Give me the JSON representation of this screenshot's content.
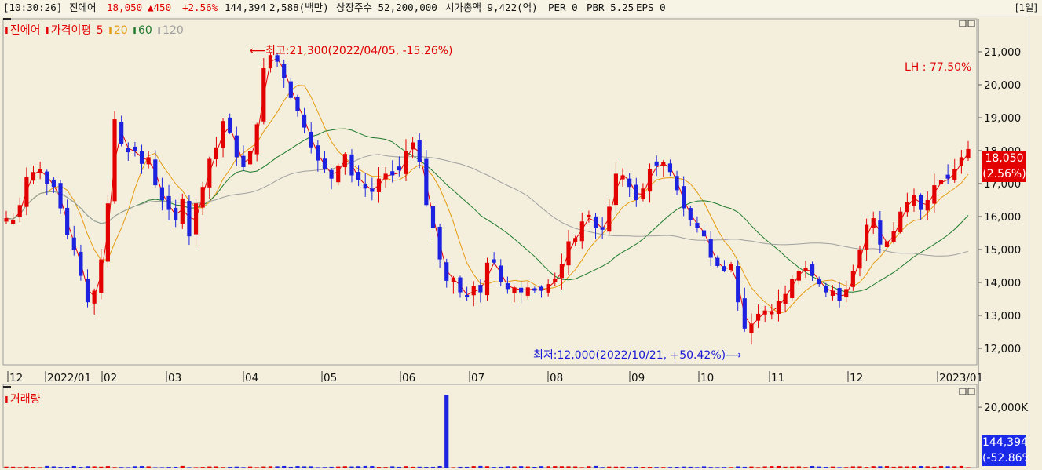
{
  "header": {
    "time": "[10:30:26]",
    "name": "진에어",
    "price": "18,050",
    "change": "▲450",
    "pct": "+2.56%",
    "volume": "144,394",
    "amount": "2,588(백만)",
    "shares": "상장주수 52,200,000",
    "mcap": "시가총액 9,422(억)",
    "per": "PER 0",
    "pbr": "PBR 5.25",
    "eps": "EPS 0",
    "period_option": "[1일]"
  },
  "legend": {
    "name": "진에어",
    "ma_label": "가격이평",
    "ma5": "5",
    "ma20": "20",
    "ma60": "60",
    "ma120": "120"
  },
  "colors": {
    "up": "#e30000",
    "down": "#1c22e0",
    "ma5": "#e30000",
    "ma20": "#e69a10",
    "ma60": "#1f7a2c",
    "ma120": "#a0a0a0",
    "background": "#f3efdc"
  },
  "annotations": {
    "high": "최고:21,300(2022/04/05, -15.26%)",
    "low": "최저:12,000(2022/10/21, +50.42%)",
    "lh": "LH : 77.50%"
  },
  "badges": {
    "price": "18,050",
    "price_pct": "(2.56%)",
    "volume": "144,394",
    "volume_pct": "(-52.86%)"
  },
  "volume_panel": {
    "title": "거래량",
    "axis_label": "20,000K"
  },
  "chart_data": {
    "type": "candlestick",
    "y_ticks": [
      "21,000",
      "20,000",
      "19,000",
      "18,000",
      "17,000",
      "16,000",
      "15,000",
      "14,000",
      "13,000",
      "12,000"
    ],
    "ylim": [
      11500,
      22000
    ],
    "x_tick_labels": [
      "12",
      "2022/01",
      "02",
      "03",
      "04",
      "05",
      "06",
      "07",
      "08",
      "09",
      "10",
      "11",
      "12",
      "2023/01"
    ],
    "closes": [
      15950,
      15900,
      16350,
      17200,
      17350,
      17450,
      17000,
      16900,
      16250,
      15450,
      15000,
      14200,
      13400,
      13750,
      14700,
      16400,
      18950,
      18200,
      17950,
      18000,
      17600,
      17800,
      16950,
      16500,
      16200,
      15900,
      16550,
      15400,
      16400,
      16900,
      17750,
      18100,
      18900,
      18550,
      17800,
      17500,
      18000,
      18800,
      20500,
      20900,
      20700,
      20200,
      19600,
      19200,
      18700,
      18100,
      17700,
      17450,
      17150,
      17550,
      17900,
      17250,
      17100,
      16850,
      16750,
      17150,
      17300,
      17250,
      17400,
      18000,
      18250,
      17650,
      16350,
      15650,
      14700,
      14050,
      14150,
      13700,
      13550,
      13900,
      13700,
      14600,
      14600,
      14000,
      13800,
      13850,
      13700,
      13850,
      13750,
      13750,
      13950,
      14100,
      14550,
      15250,
      15350,
      15850,
      16050,
      15650,
      15600,
      16300,
      17300,
      17250,
      16900,
      16500,
      16850,
      17450,
      17550,
      17650,
      17350,
      16800,
      16250,
      15900,
      15650,
      15400,
      14750,
      14500,
      14350,
      14550,
      13400,
      12600,
      12750,
      13050,
      13150,
      13100,
      13450,
      13650,
      14100,
      14350,
      14450,
      14200,
      13950,
      13700,
      13750,
      13450,
      13800,
      14350,
      15000,
      15750,
      15950,
      15150,
      15250,
      15550,
      16150,
      16450,
      16650,
      16200,
      16500,
      16950,
      17100,
      17150,
      17450,
      17800,
      18050
    ],
    "volume_spike_value": "approx 24,000K (2022/06)"
  }
}
